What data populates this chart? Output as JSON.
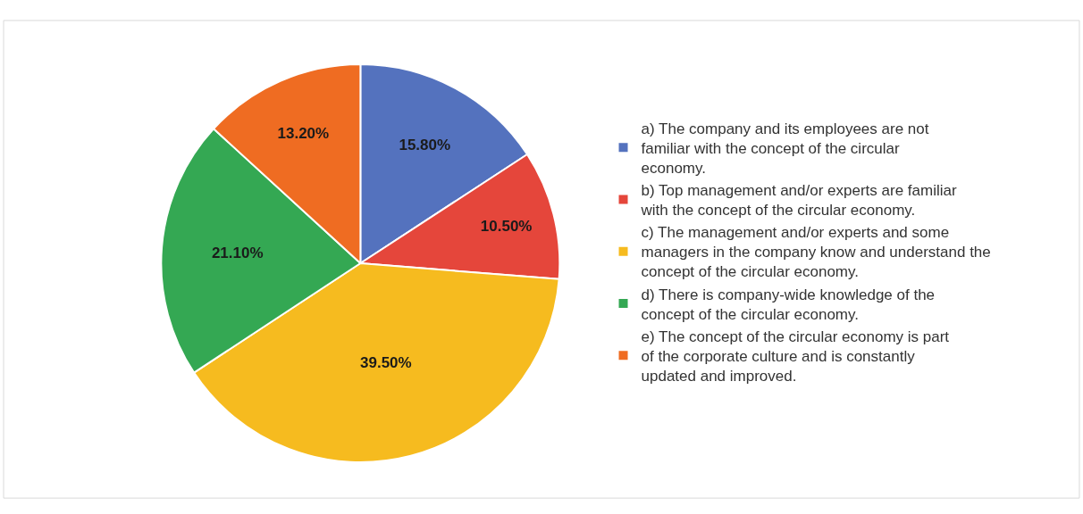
{
  "chart_data": {
    "type": "pie",
    "categories": [
      "a) The company and its employees are not familiar with the concept of the circular economy.",
      "b) Top management and/or experts are familiar with the concept of the circular economy.",
      "c) The management and/or experts and some managers in the company know and understand the concept of the circular economy.",
      "d) There is company-wide knowledge of the concept of the circular economy.",
      "e) The concept of the circular economy is part of the corporate culture and is constantly updated and improved."
    ],
    "values": [
      15.8,
      10.5,
      39.5,
      21.1,
      13.2
    ],
    "value_labels": [
      "15.80%",
      "10.50%",
      "39.50%",
      "21.10%",
      "13.20%"
    ],
    "colors": [
      "#5472be",
      "#e5463b",
      "#f6bb1f",
      "#34a853",
      "#ef6c22"
    ],
    "legend": "right"
  }
}
